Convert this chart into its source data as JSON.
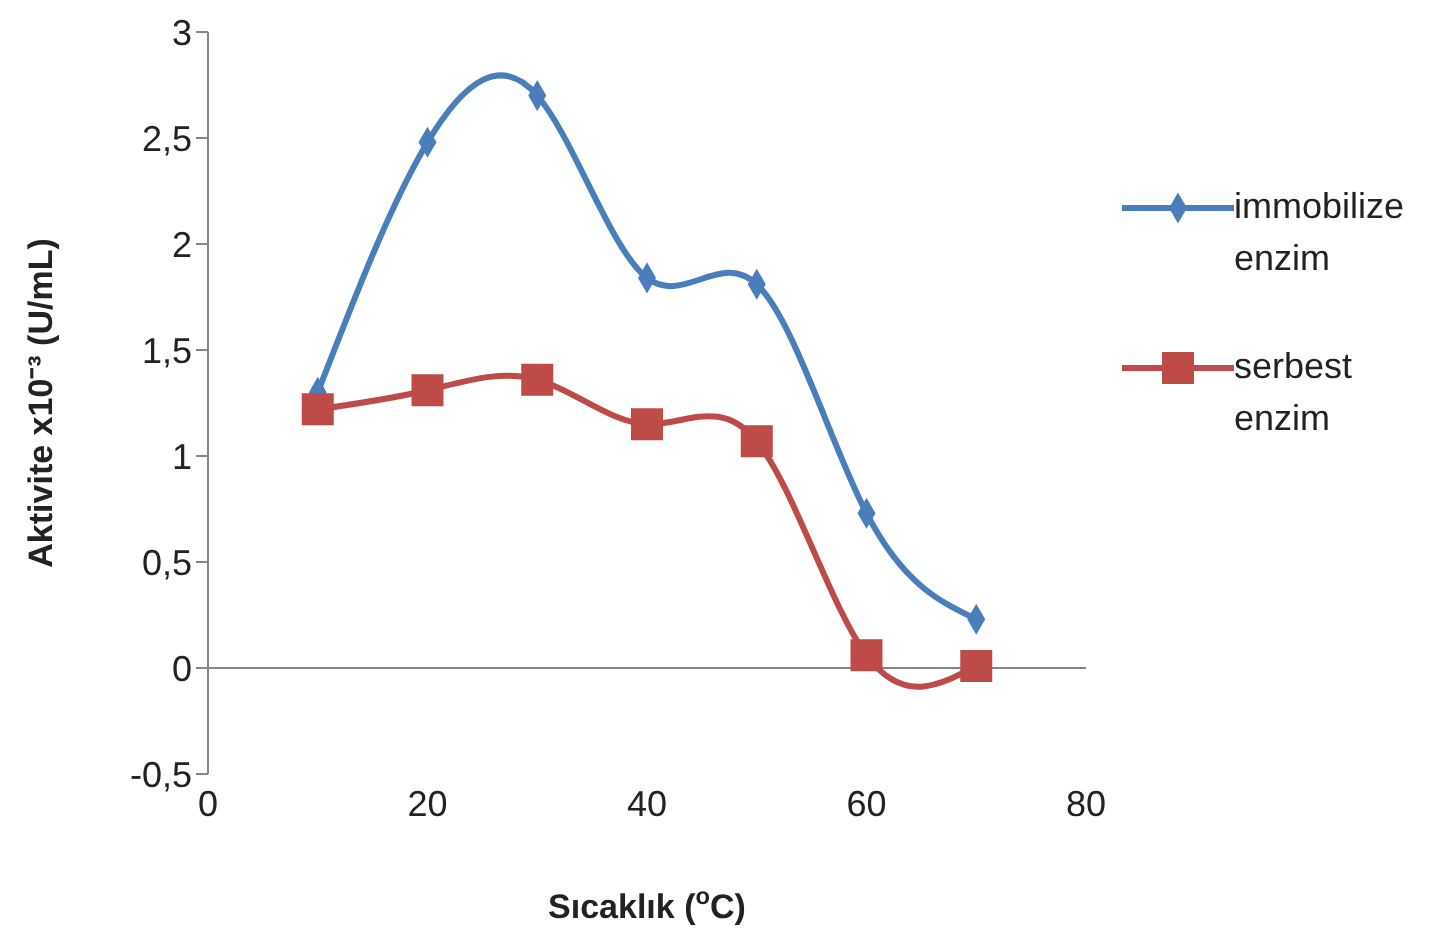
{
  "chart_data": {
    "type": "line",
    "xlabel": "Sıcaklık ($^{o}$C)",
    "ylabel": "Aktivite x10⁻³ (U/mL)",
    "x": [
      10,
      20,
      30,
      40,
      50,
      60,
      70
    ],
    "series": [
      {
        "name": "immobilize enzim",
        "color": "#4a7ebb",
        "marker": "diamond",
        "values": [
          1.3,
          2.48,
          2.7,
          1.84,
          1.81,
          0.73,
          0.23
        ]
      },
      {
        "name": "serbest enzim",
        "color": "#be4b48",
        "marker": "square",
        "values": [
          1.22,
          1.31,
          1.36,
          1.15,
          1.07,
          0.06,
          0.01
        ]
      }
    ],
    "xlim": [
      0,
      80
    ],
    "xticks": [
      0,
      20,
      40,
      60,
      80
    ],
    "ylim": [
      -0.5,
      3
    ],
    "yticks": [
      {
        "value": -0.5,
        "label": "-0,5"
      },
      0,
      {
        "value": 0.5,
        "label": "0,5"
      },
      1,
      {
        "value": 1.5,
        "label": "1,5"
      },
      2,
      {
        "value": 2.5,
        "label": "2,5"
      },
      3
    ],
    "ref_lines": [
      {
        "axis": "y",
        "value": 0,
        "color": "#868686"
      }
    ],
    "grid": false,
    "legend": "right"
  }
}
